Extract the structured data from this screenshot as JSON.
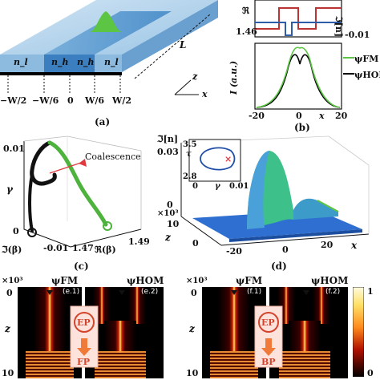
{
  "panel_a": {
    "caption": "(a)",
    "regions": [
      "n_l",
      "n_h",
      "n_h",
      "n_l"
    ],
    "length_label": "L",
    "axis_z": "z",
    "axis_x": "x",
    "ticks": [
      "−W/2",
      "−W/6",
      "0",
      "W/6",
      "W/2"
    ]
  },
  "panel_b": {
    "caption": "(b)",
    "top_ylabel_left": "ℜ",
    "top_ylabel_right": "ℑ[n]",
    "top_tick_left": "1.46",
    "top_tick_right": "-0.01",
    "ylabel": "I (a.u.)",
    "xlabel": "x",
    "xticks": [
      "-20",
      "0",
      "20"
    ],
    "legend": [
      {
        "name": "ψFM",
        "color": "#5cc544"
      },
      {
        "name": "ψHOM",
        "color": "#000000"
      }
    ]
  },
  "panel_c": {
    "caption": "(c)",
    "annotation": "Coalescence",
    "ylabel": "γ",
    "ytick_top": "0.01",
    "ytick_bottom": "0",
    "xlabel_left": "ℑ(β)",
    "xtick_left": "-0.01",
    "xlabel_right": "ℜ(β)",
    "xtick_mid": "1.47",
    "xtick_right": "1.49"
  },
  "panel_d": {
    "caption": "(d)",
    "zlabel": "ℑ[n]",
    "zticks": [
      "0.03",
      "0"
    ],
    "inset_ylabel": "τ",
    "inset_xlabel": "γ",
    "inset_yticks": [
      "3.5",
      "2.8"
    ],
    "inset_xticks": [
      "0",
      "0.01"
    ],
    "zaxis_label": "z",
    "zaxis_exp": "×10³",
    "zaxis_ticks": [
      "10",
      "0"
    ],
    "xticks": [
      "-20",
      "0",
      "20"
    ],
    "xlabel": "x"
  },
  "panel_e": {
    "exp": "×10³",
    "yticks": [
      "0",
      "10"
    ],
    "ylabel": "z",
    "left_title": "ψFM",
    "right_title": "ψHOM",
    "tag1": "(e.1)",
    "tag2": "(e.2)",
    "ep": "EP",
    "fp": "FP"
  },
  "panel_f": {
    "exp": "×10³",
    "yticks": [
      "0",
      "10"
    ],
    "ylabel": "z",
    "left_title": "ψFM",
    "right_title": "ψHOM",
    "tag1": "(f.1)",
    "tag2": "(f.2)",
    "ep": "EP",
    "bp": "BP"
  },
  "colorbar": {
    "ticks": [
      "1",
      "0"
    ]
  }
}
